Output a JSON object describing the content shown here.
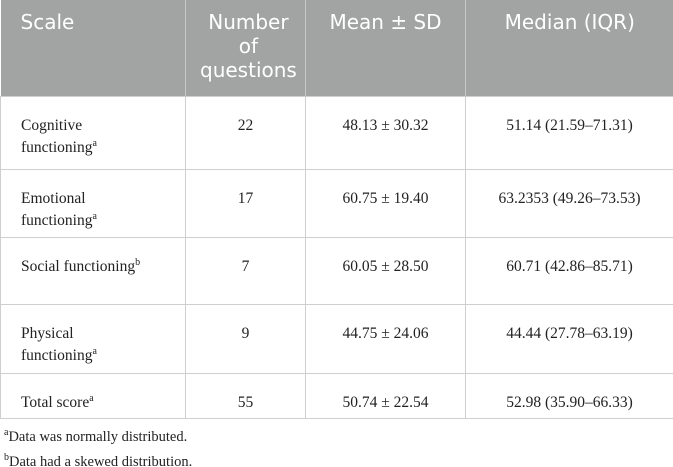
{
  "table": {
    "header": [
      "Scale",
      "Number of questions",
      "Mean ± SD",
      "Median (IQR)"
    ],
    "rows": [
      {
        "scale": "Cognitive functioning",
        "sup": "a",
        "number": "22",
        "mean": "48.13 ± 30.32",
        "median": "51.14 (21.59–71.31)"
      },
      {
        "scale": "Emotional functioning",
        "sup": "a",
        "number": "17",
        "mean": "60.75 ± 19.40",
        "median": "63.2353 (49.26–73.53)"
      },
      {
        "scale": "Social functioning",
        "sup": "b",
        "number": "7",
        "mean": "60.05 ± 28.50",
        "median": "60.71 (42.86–85.71)"
      },
      {
        "scale": "Physical functioning",
        "sup": "a",
        "number": "9",
        "mean": "44.75 ± 24.06",
        "median": "44.44 (27.78–63.19)"
      },
      {
        "scale": "Total score",
        "sup": "a",
        "number": "55",
        "mean": "50.74 ± 22.54",
        "median": "52.98 (35.90–66.33)"
      }
    ],
    "footnotes": [
      {
        "mark": "a",
        "text": "Data was normally distributed."
      },
      {
        "mark": "b",
        "text": "Data had a skewed distribution."
      }
    ]
  }
}
